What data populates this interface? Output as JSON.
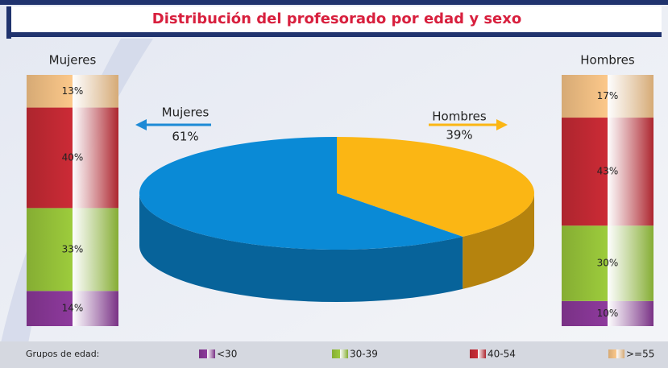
{
  "title": "Distribución del profesorado por edad y sexo",
  "legend_title": "Grupos de edad:",
  "chart_data": [
    {
      "type": "pie",
      "categories": [
        "Mujeres",
        "Hombres"
      ],
      "values": [
        61,
        39
      ],
      "value_labels": [
        "61%",
        "39%"
      ],
      "colors": [
        "#0a8ad6",
        "#fbb614"
      ]
    },
    {
      "type": "stacked-bar",
      "title": "Mujeres",
      "categories": [
        "<30",
        "30-39",
        "40-54",
        ">=55"
      ],
      "values": [
        14,
        33,
        40,
        13
      ],
      "value_labels": [
        "14%",
        "33%",
        "40%",
        "13%"
      ],
      "colors": [
        "#8e3a9d",
        "#9dcc3c",
        "#cc2b36",
        "#fcc88a"
      ]
    },
    {
      "type": "stacked-bar",
      "title": "Hombres",
      "categories": [
        "<30",
        "30-39",
        "40-54",
        ">=55"
      ],
      "values": [
        10,
        30,
        43,
        17
      ],
      "value_labels": [
        "10%",
        "30%",
        "43%",
        "17%"
      ],
      "colors": [
        "#8e3a9d",
        "#9dcc3c",
        "#cc2b36",
        "#fcc88a"
      ]
    }
  ]
}
